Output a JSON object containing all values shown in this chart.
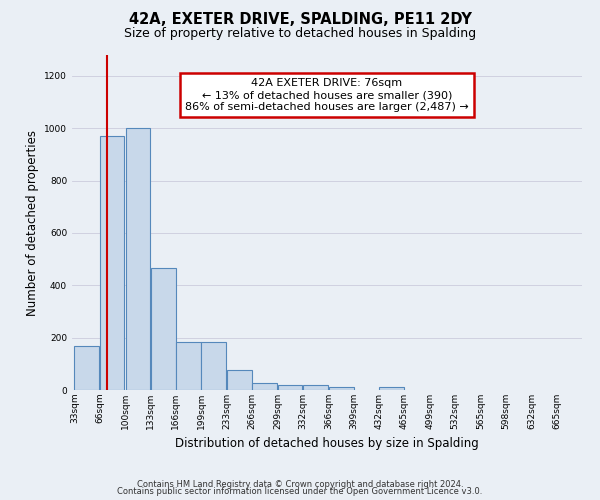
{
  "title": "42A, EXETER DRIVE, SPALDING, PE11 2DY",
  "subtitle": "Size of property relative to detached houses in Spalding",
  "xlabel": "Distribution of detached houses by size in Spalding",
  "ylabel": "Number of detached properties",
  "footnote1": "Contains HM Land Registry data © Crown copyright and database right 2024.",
  "footnote2": "Contains public sector information licensed under the Open Government Licence v3.0.",
  "bin_edges": [
    33,
    66,
    100,
    133,
    166,
    199,
    233,
    266,
    299,
    332,
    366,
    399,
    432,
    465,
    499,
    532,
    565,
    598,
    632,
    665,
    698
  ],
  "bar_heights": [
    170,
    970,
    1000,
    465,
    185,
    185,
    75,
    25,
    20,
    20,
    10,
    0,
    10,
    0,
    0,
    0,
    0,
    0,
    0,
    0
  ],
  "bar_color": "#c8d8ea",
  "bar_edgecolor": "#5588bb",
  "bar_linewidth": 0.8,
  "red_line_x": 76,
  "red_line_color": "#cc0000",
  "annotation_text": "42A EXETER DRIVE: 76sqm\n← 13% of detached houses are smaller (390)\n86% of semi-detached houses are larger (2,487) →",
  "annotation_box_color": "#cc0000",
  "annotation_facecolor": "white",
  "ylim": [
    0,
    1280
  ],
  "yticks": [
    0,
    200,
    400,
    600,
    800,
    1000,
    1200
  ],
  "bg_color": "#eaeff5",
  "grid_color": "#ccccdd",
  "title_fontsize": 10.5,
  "subtitle_fontsize": 9,
  "tick_label_fontsize": 6.5,
  "ylabel_fontsize": 8.5,
  "xlabel_fontsize": 8.5,
  "annotation_fontsize": 8,
  "footnote_fontsize": 6
}
